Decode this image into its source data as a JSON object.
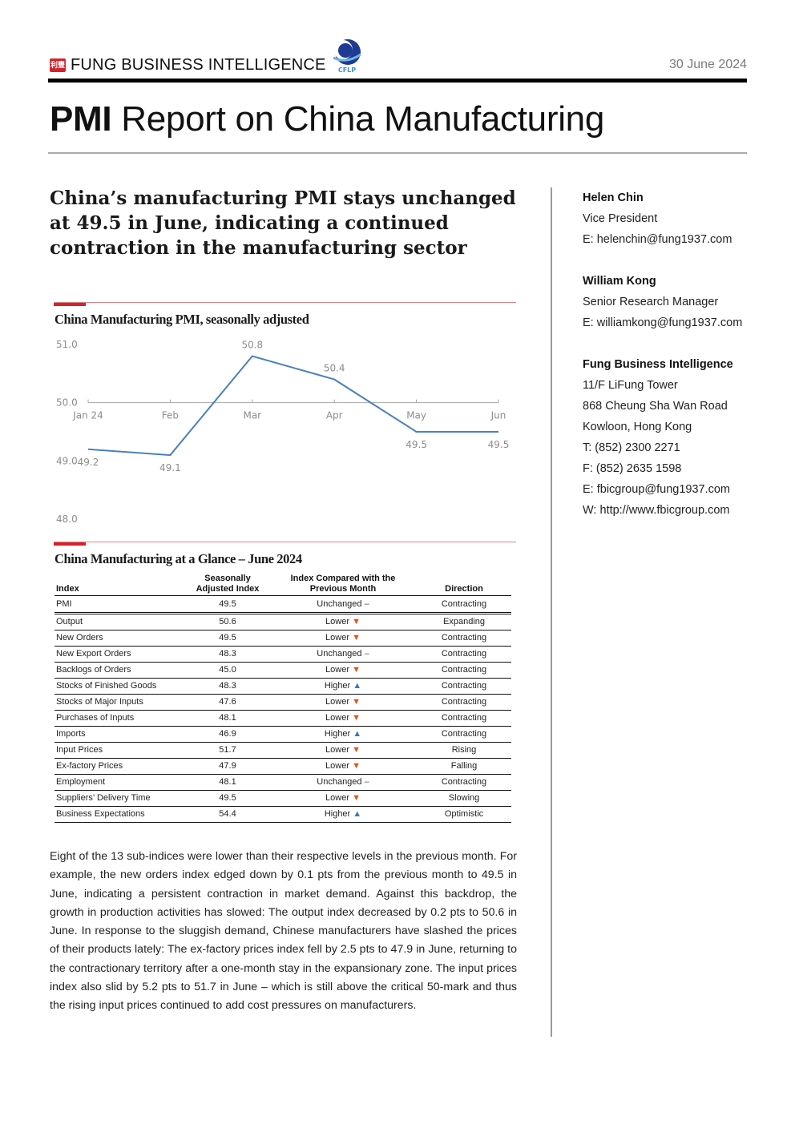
{
  "header": {
    "brand_mark": "利豐",
    "brand_name": "FUNG BUSINESS INTELLIGENCE",
    "partner_logo_text": "CFLP",
    "date": "30 June 2024"
  },
  "title": {
    "bold": "PMI",
    "rest": " Report on China Manufacturing"
  },
  "headline": "China’s manufacturing PMI stays unchanged at 49.5 in June, indicating a continued contraction in the manufacturing sector",
  "chart_section_title": "China Manufacturing PMI, seasonally adjusted",
  "chart_data": {
    "type": "line",
    "title": "China Manufacturing PMI, seasonally adjusted",
    "categories": [
      "Jan 24",
      "Feb",
      "Mar",
      "Apr",
      "May",
      "Jun"
    ],
    "values": [
      49.2,
      49.1,
      50.8,
      50.4,
      49.5,
      49.5
    ],
    "data_labels": [
      "49.2",
      "49.1",
      "50.8",
      "50.4",
      "49.5",
      "49.5"
    ],
    "y_ticks": [
      "51.0",
      "50.0",
      "49.0",
      "48.0"
    ],
    "ylim": [
      48.0,
      51.0
    ],
    "x_axis_crosses_at": 50.0,
    "grid": false,
    "line_color": "#4a7fbf"
  },
  "table": {
    "title": "China Manufacturing at a Glance – June 2024",
    "headers": {
      "index": "Index",
      "sa_line1": "Seasonally",
      "sa_line2": "Adjusted Index",
      "cmp_line1": "Index Compared with the",
      "cmp_line2": "Previous Month",
      "direction": "Direction"
    },
    "rows": [
      {
        "index": "PMI",
        "value": "49.5",
        "compare": "Unchanged",
        "arrow": "–",
        "dir": "flat",
        "direction": "Contracting"
      },
      {
        "index": "Output",
        "value": "50.6",
        "compare": "Lower",
        "arrow": "▼",
        "dir": "down",
        "direction": "Expanding"
      },
      {
        "index": "New Orders",
        "value": "49.5",
        "compare": "Lower",
        "arrow": "▼",
        "dir": "down",
        "direction": "Contracting"
      },
      {
        "index": "New Export Orders",
        "value": "48.3",
        "compare": "Unchanged",
        "arrow": "–",
        "dir": "flat",
        "direction": "Contracting"
      },
      {
        "index": "Backlogs of Orders",
        "value": "45.0",
        "compare": "Lower",
        "arrow": "▼",
        "dir": "down",
        "direction": "Contracting"
      },
      {
        "index": "Stocks of Finished Goods",
        "value": "48.3",
        "compare": "Higher",
        "arrow": "▲",
        "dir": "up",
        "direction": "Contracting"
      },
      {
        "index": "Stocks of Major Inputs",
        "value": "47.6",
        "compare": "Lower",
        "arrow": "▼",
        "dir": "down",
        "direction": "Contracting"
      },
      {
        "index": "Purchases of Inputs",
        "value": "48.1",
        "compare": "Lower",
        "arrow": "▼",
        "dir": "down",
        "direction": "Contracting"
      },
      {
        "index": "Imports",
        "value": "46.9",
        "compare": "Higher",
        "arrow": "▲",
        "dir": "up",
        "direction": "Contracting"
      },
      {
        "index": "Input Prices",
        "value": "51.7",
        "compare": "Lower",
        "arrow": "▼",
        "dir": "down",
        "direction": "Rising"
      },
      {
        "index": "Ex-factory Prices",
        "value": "47.9",
        "compare": "Lower",
        "arrow": "▼",
        "dir": "down",
        "direction": "Falling"
      },
      {
        "index": "Employment",
        "value": "48.1",
        "compare": "Unchanged",
        "arrow": "–",
        "dir": "flat",
        "direction": "Contracting"
      },
      {
        "index": "Suppliers’ Delivery Time",
        "value": "49.5",
        "compare": "Lower",
        "arrow": "▼",
        "dir": "down",
        "direction": "Slowing"
      },
      {
        "index": "Business Expectations",
        "value": "54.4",
        "compare": "Higher",
        "arrow": "▲",
        "dir": "up",
        "direction": "Optimistic"
      }
    ]
  },
  "paragraph": "Eight of the 13 sub-indices were lower than their respective levels in the previous month. For example, the new orders index edged down by 0.1 pts from the previous month to 49.5 in June, indicating a persistent contraction in market demand. Against this backdrop, the growth in production activities has slowed: The output index decreased by 0.2 pts to 50.6 in June. In response to the sluggish demand, Chinese manufacturers have slashed the prices of their products lately: The ex-factory prices index fell by 2.5 pts to 47.9 in June, returning to the contractionary territory after a one-month stay in the expansionary zone. The input prices index also slid by 5.2 pts to 51.7 in June – which is still above the critical 50-mark and thus the rising input prices continued to add cost pressures on manufacturers.",
  "sidebar": {
    "contacts": [
      {
        "lines": [
          "Helen Chin",
          "Vice President",
          "E: helenchin@fung1937.com"
        ]
      },
      {
        "lines": [
          "William Kong",
          "Senior Research Manager",
          "E: williamkong@fung1937.com"
        ]
      },
      {
        "lines": [
          "Fung Business Intelligence",
          "11/F LiFung Tower",
          "868 Cheung Sha Wan Road",
          "Kowloon, Hong Kong",
          "T: (852) 2300 2271",
          "F: (852) 2635 1598",
          "E: fbicgroup@fung1937.com",
          "W: http://www.fbicgroup.com"
        ]
      }
    ]
  },
  "colors": {
    "accent_red": "#d2232a",
    "line_blue": "#4a7fbf",
    "arrow_down": "#e0561f",
    "arrow_up": "#3c77b3"
  }
}
